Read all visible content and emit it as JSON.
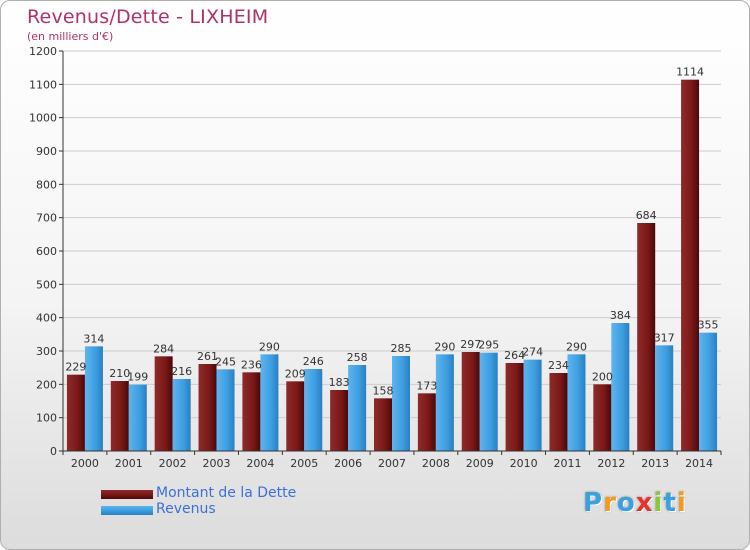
{
  "header": {
    "title": "Revenus/Dette - LIXHEIM",
    "subtitle": "(en milliers d'€)"
  },
  "colors": {
    "dette": "#7a1818",
    "revenus": "#3d9ee0",
    "grid": "#cccccc",
    "axis": "#333333"
  },
  "chart_data": {
    "type": "bar",
    "title": "Revenus/Dette - LIXHEIM",
    "subtitle": "(en milliers d'€)",
    "categories": [
      "2000",
      "2001",
      "2002",
      "2003",
      "2004",
      "2005",
      "2006",
      "2007",
      "2008",
      "2009",
      "2010",
      "2011",
      "2012",
      "2013",
      "2014"
    ],
    "series": [
      {
        "name": "Montant de la Dette",
        "values": [
          229,
          210,
          284,
          261,
          236,
          209,
          183,
          158,
          173,
          297,
          264,
          234,
          200,
          684,
          1114
        ]
      },
      {
        "name": "Revenus",
        "values": [
          314,
          199,
          216,
          245,
          290,
          246,
          258,
          285,
          290,
          295,
          274,
          290,
          384,
          317,
          355
        ]
      }
    ],
    "yticks": [
      0,
      100,
      200,
      300,
      400,
      500,
      600,
      700,
      800,
      900,
      1000,
      1100,
      1200
    ],
    "ylim": [
      0,
      1200
    ],
    "grid": true,
    "legend": "bottom-left"
  },
  "legend": {
    "items": [
      {
        "label": "Montant de la Dette"
      },
      {
        "label": "Revenus"
      }
    ]
  },
  "logo": {
    "letters": [
      "P",
      "r",
      "o",
      "x",
      "i",
      "t",
      "i"
    ],
    "colors": [
      "#3aa0de",
      "#f29b1d",
      "#3aa0de",
      "#e8322b",
      "#8cc63f",
      "#3aa0de",
      "#f29b1d"
    ]
  }
}
